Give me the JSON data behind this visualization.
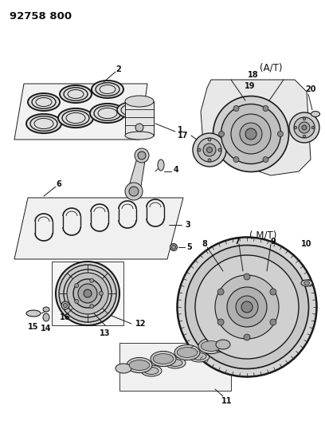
{
  "title": "92758 800",
  "background_color": "#ffffff",
  "figsize": [
    4.08,
    5.33
  ],
  "dpi": 100,
  "line_color": "#1a1a1a",
  "text_color": "#111111",
  "label_fontsize": 7.0,
  "title_fontsize": 9.5
}
